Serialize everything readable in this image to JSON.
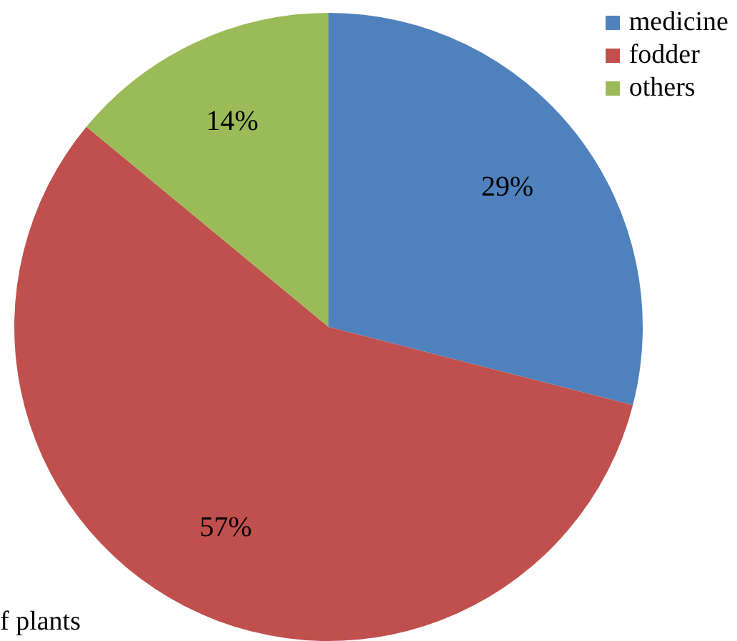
{
  "chart_data": {
    "type": "pie",
    "categories": [
      "medicine",
      "fodder",
      "others"
    ],
    "values": [
      29,
      57,
      14
    ],
    "colors": [
      "#4f81bd",
      "#c0504d",
      "#9bbb59"
    ],
    "value_labels": [
      "29%",
      "57%",
      "14%"
    ],
    "legend": "top right",
    "annotations": [
      "f plants"
    ]
  }
}
